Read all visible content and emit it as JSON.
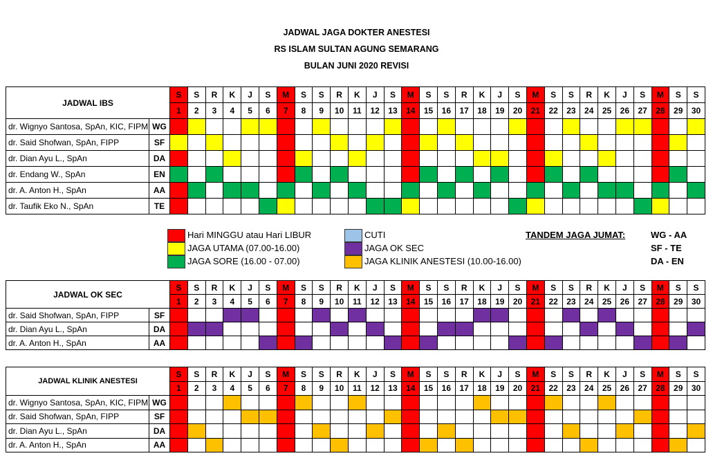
{
  "titles": [
    "JADWAL JAGA DOKTER ANESTESI",
    "RS ISLAM SULTAN AGUNG SEMARANG",
    "BULAN JUNI 2020 REVISI"
  ],
  "weekdays": [
    "S",
    "S",
    "R",
    "K",
    "J",
    "S",
    "M",
    "S",
    "S",
    "R",
    "K",
    "J",
    "S",
    "M",
    "S",
    "S",
    "R",
    "K",
    "J",
    "S",
    "M",
    "S",
    "S",
    "R",
    "K",
    "J",
    "S",
    "M",
    "S",
    "S"
  ],
  "holidays": [
    1,
    7,
    14,
    21,
    28
  ],
  "colors": {
    "R": "#ff0000",
    "Y": "#ffff00",
    "G": "#00b050",
    "P": "#7030a0",
    "O": "#ffc000",
    "B": "#9dc3e6"
  },
  "tables": [
    {
      "id": "ibs",
      "title": "JADWAL IBS",
      "rows": [
        {
          "name": "dr. Wignyo Santosa, SpAn, KIC, FIPM",
          "code": "WG",
          "cells": "RY..YYR.Y...YR.Y...YR.Y..YYR.Y"
        },
        {
          "name": "dr. Said Shofwan, SpAn, FIPP",
          "code": "SF",
          "cells": "Y.Y...R..Y.Y.RY.Y...R..Y...RY."
        },
        {
          "name": "dr. Dian Ayu L., SpAn",
          "code": "DA",
          "cells": "R..Y..RY..Y..R...YY.RY..Y..R.."
        },
        {
          "name": "dr. Endang W., SpAn",
          "code": "EN",
          "cells": "G.G...RG.G...RG.G.G.RG.G...RG."
        },
        {
          "name": "dr. A. Anton H., SpAn",
          "code": "AA",
          "cells": "RG.GG.G.G.G..G.G.G..G.G.GG.G.G"
        },
        {
          "name": "dr. Taufik Eko N., SpAn",
          "code": "TE",
          "cells": "R....GY....GGY.....GY.....GY.."
        }
      ]
    },
    {
      "id": "ok",
      "title": "JADWAL OK SEC",
      "rows": [
        {
          "name": "dr. Said Shofwan, SpAn, FIPP",
          "code": "SF",
          "cells": "R..PP.R.P.P..R...PP.R.P.P..R.."
        },
        {
          "name": "dr. Dian Ayu L., SpAn",
          "code": "DA",
          "cells": "RPP...R..P.P.R.PP...R..P.P.R.P"
        },
        {
          "name": "dr. A. Anton H., SpAn",
          "code": "AA",
          "cells": "R....PRP....PRP....PRP....PRP."
        }
      ]
    },
    {
      "id": "kl",
      "title": "JADWAL KLINIK ANESTESI",
      "rows": [
        {
          "name": "dr. Wignyo Santosa, SpAn, KIC, FIPM",
          "code": "WG",
          "cells": "R..O..RO..O..R...O..RO..O..R.."
        },
        {
          "name": "dr. Said Shofwan, SpAn, FIPP",
          "code": "SF",
          "cells": "R...OOR.....OR....OOR.....OR.."
        },
        {
          "name": "dr. Dian Ayu L., SpAn",
          "code": "DA",
          "cells": "RO....R.O..O.R.O....R.O..O.R.O"
        },
        {
          "name": "dr. A. Anton H., SpAn",
          "code": "AA",
          "cells": "R.O...R..O...RO.O...R..O...RO."
        }
      ]
    }
  ],
  "legend": [
    {
      "label": "Hari MINGGU atau  Hari LIBUR",
      "code": "R"
    },
    {
      "label": "JAGA UTAMA (07.00-16.00)",
      "code": "Y"
    },
    {
      "label": "JAGA  SORE (16.00 - 07.00)",
      "code": "G"
    },
    {
      "label": "CUTI",
      "code": "B"
    },
    {
      "label": "JAGA OK SEC",
      "code": "P"
    },
    {
      "label": "JAGA KLINIK ANESTESI (10.00-16.00)",
      "code": "O"
    }
  ],
  "tandem": {
    "label": "TANDEM JAGA JUMAT:",
    "pairs": [
      "WG - AA",
      "SF - TE",
      "DA - EN"
    ]
  }
}
